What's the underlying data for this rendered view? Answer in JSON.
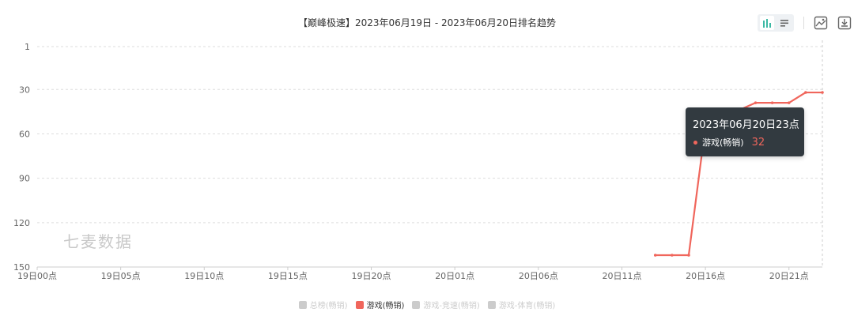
{
  "chart_data": {
    "type": "line",
    "title": "【巅峰极速】2023年06月19日 - 2023年06月20日排名趋势",
    "y_ticks": [
      1,
      30,
      60,
      90,
      120,
      150
    ],
    "ylim": [
      1,
      150
    ],
    "y_inverted": true,
    "x_ticks": [
      "19日00点",
      "19日05点",
      "19日10点",
      "19日15点",
      "19日20点",
      "20日01点",
      "20日06点",
      "20日11点",
      "20日16点",
      "20日21点"
    ],
    "grid": true,
    "legend_position": "bottom",
    "legend": [
      "总榜(畅销)",
      "游戏(畅销)",
      "游戏-竞速(畅销)",
      "游戏-体育(畅销)"
    ],
    "legend_active": [
      false,
      true,
      false,
      false
    ],
    "series": [
      {
        "name": "游戏(畅销)",
        "color": "#f0665c",
        "x": [
          "20日13点",
          "20日14点",
          "20日15点",
          "20日16点",
          "20日17点",
          "20日18点",
          "20日19点",
          "20日20点",
          "20日21点",
          "20日22点",
          "20日23点"
        ],
        "values": [
          142,
          142,
          142,
          55,
          50,
          44,
          39,
          39,
          39,
          32,
          32
        ]
      }
    ]
  },
  "watermark": "七麦数据",
  "tooltip": {
    "title": "2023年06月20日23点",
    "series": "游戏(畅销)",
    "value": "32"
  },
  "toolbar": {
    "icons": [
      "bar-chart-icon",
      "list-icon",
      "image-icon",
      "download-icon"
    ]
  }
}
